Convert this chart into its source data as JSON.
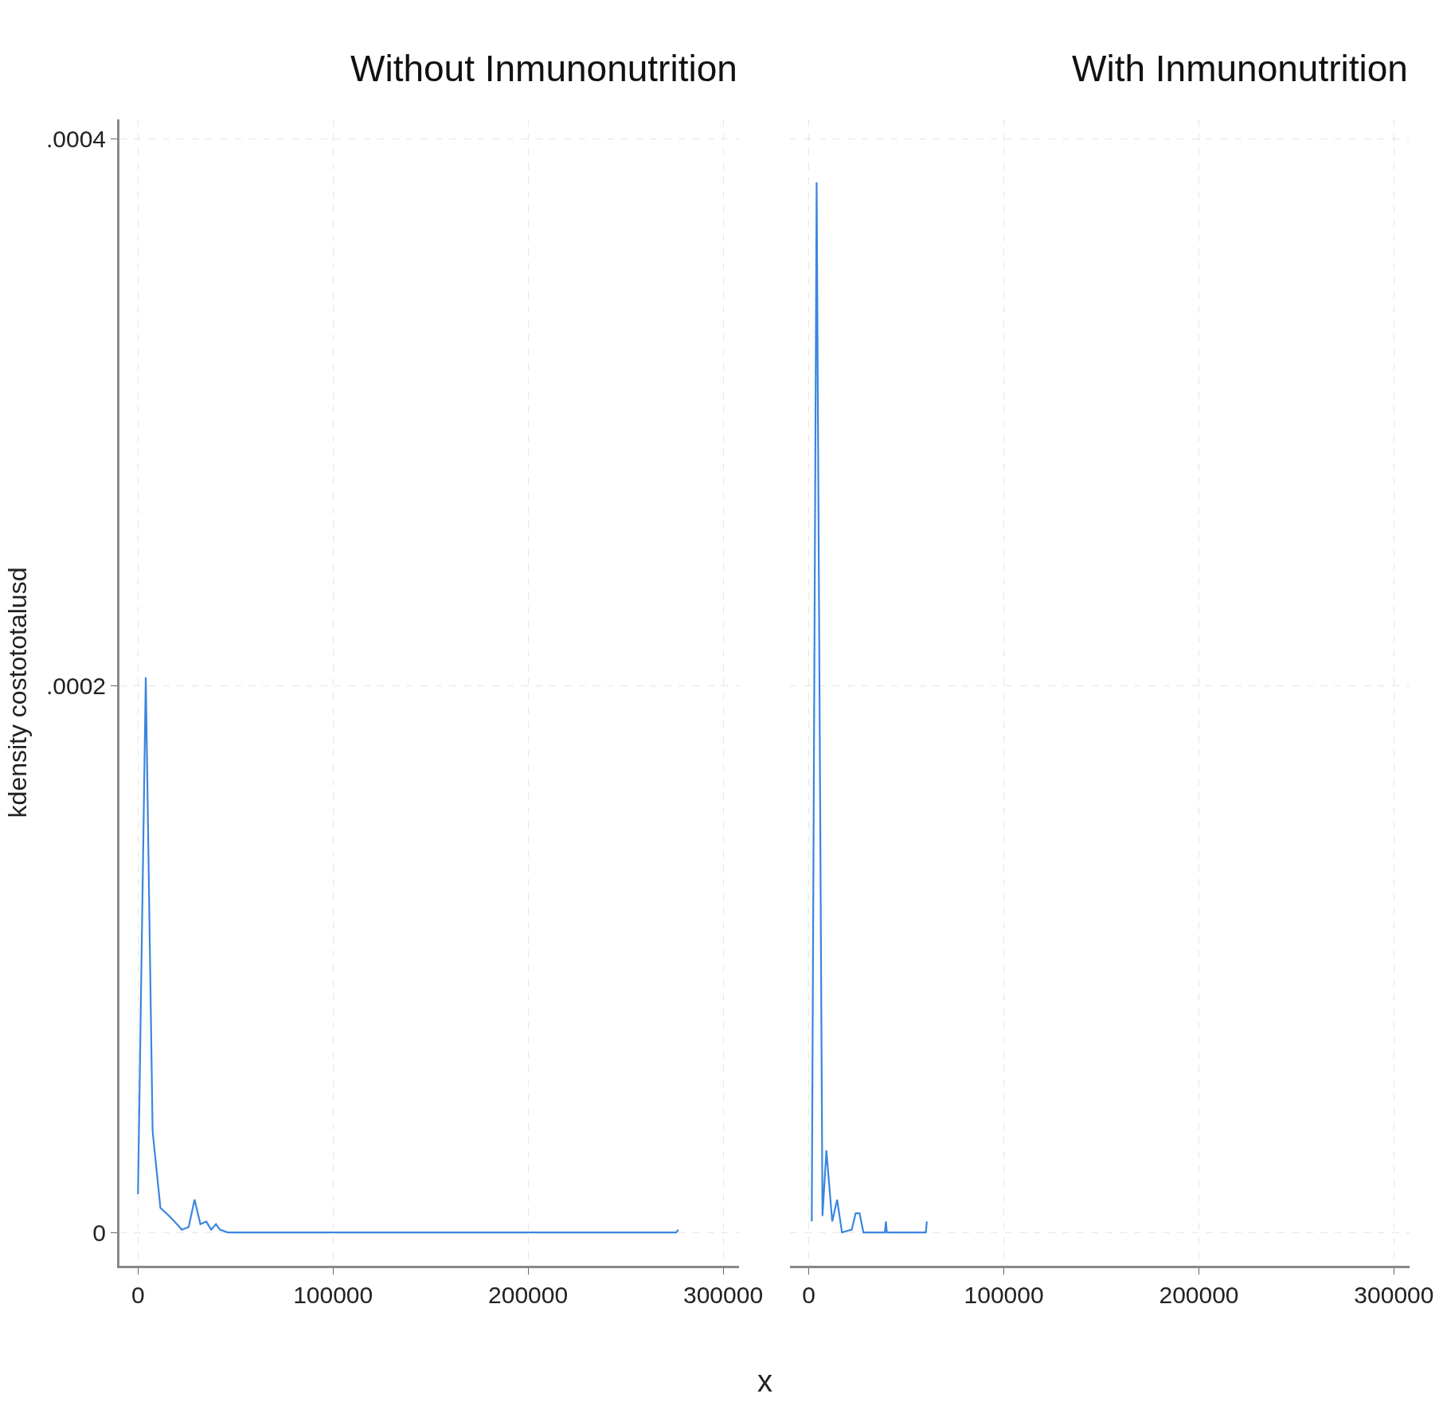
{
  "chart_data": [
    {
      "type": "line",
      "title": "Without Inmunonutrition",
      "ylabel": "kdensity costototalusd",
      "xlabel": "x",
      "series": [
        {
          "color": "#3a86e0",
          "x": [
            0,
            4000,
            7500,
            11500,
            16000,
            20000,
            22500,
            26000,
            29000,
            32000,
            35000,
            37500,
            40000,
            42000,
            46000,
            276000,
            277000
          ],
          "values": [
            1.4e-05,
            0.000203,
            3.7e-05,
            9e-06,
            6e-06,
            3e-06,
            1e-06,
            2e-06,
            1.2e-05,
            3e-06,
            4e-06,
            1e-06,
            3e-06,
            1e-06,
            0,
            0,
            1e-06
          ]
        }
      ],
      "xlim": [
        -9500,
        308000
      ],
      "ylim": [
        -1.22e-05,
        0.000407
      ],
      "xticks": [
        0,
        100000,
        200000,
        300000
      ],
      "yticks": [
        {
          "value": 0,
          "label": "0"
        },
        {
          "value": 0.0002,
          "label": ".0002"
        },
        {
          "value": 0.0004,
          "label": ".0004"
        }
      ],
      "grid": true,
      "line_style": "solid"
    },
    {
      "type": "line",
      "title": "With Inmunonutrition",
      "series": [
        {
          "color": "#3a86e0",
          "x": [
            1500,
            4000,
            7000,
            9000,
            12000,
            14500,
            17000,
            22000,
            24000,
            26000,
            28000,
            39000,
            39500,
            40000,
            60000,
            60500
          ],
          "values": [
            4e-06,
            0.000384,
            6e-06,
            3e-05,
            4e-06,
            1.2e-05,
            0,
            1e-06,
            7e-06,
            7e-06,
            0,
            0,
            4e-06,
            0,
            0,
            4e-06
          ]
        }
      ],
      "xlim": [
        -9500,
        308000
      ],
      "ylim": [
        -1.22e-05,
        0.000407
      ],
      "xticks": [
        0,
        100000,
        200000,
        300000
      ],
      "yticks": [
        {
          "value": 0,
          "label": null
        },
        {
          "value": 0.0002,
          "label": null
        },
        {
          "value": 0.0004,
          "label": null
        }
      ],
      "grid": true,
      "line_style": "solid",
      "tick_labels": "x"
    }
  ]
}
